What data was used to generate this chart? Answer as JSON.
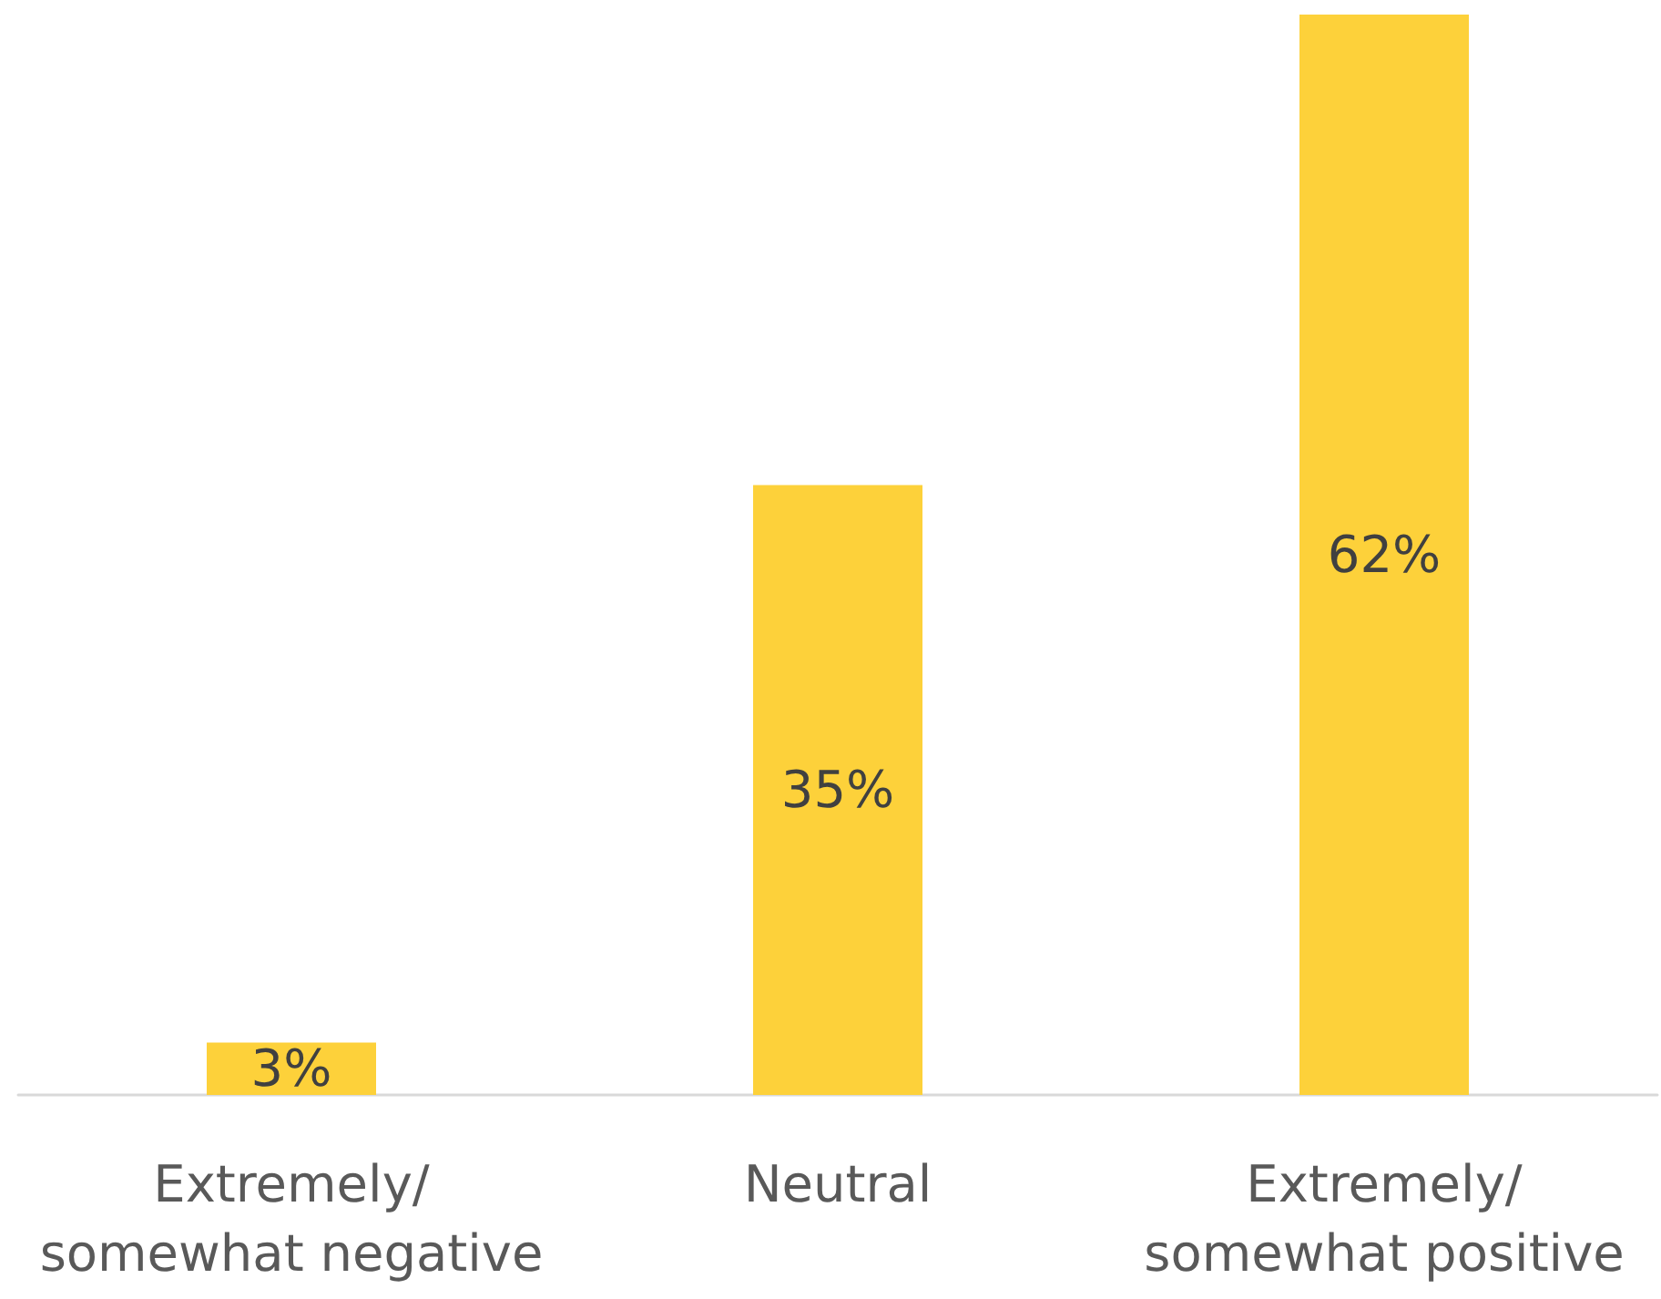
{
  "chart_data": {
    "type": "bar",
    "categories": [
      "Extremely/\nsomewhat negative",
      "Neutral",
      "Extremely/\nsomewhat positive"
    ],
    "values": [
      3,
      35,
      62
    ],
    "color": "#fdd13a",
    "value_labels": [
      "3%",
      "35%",
      "62%"
    ]
  }
}
